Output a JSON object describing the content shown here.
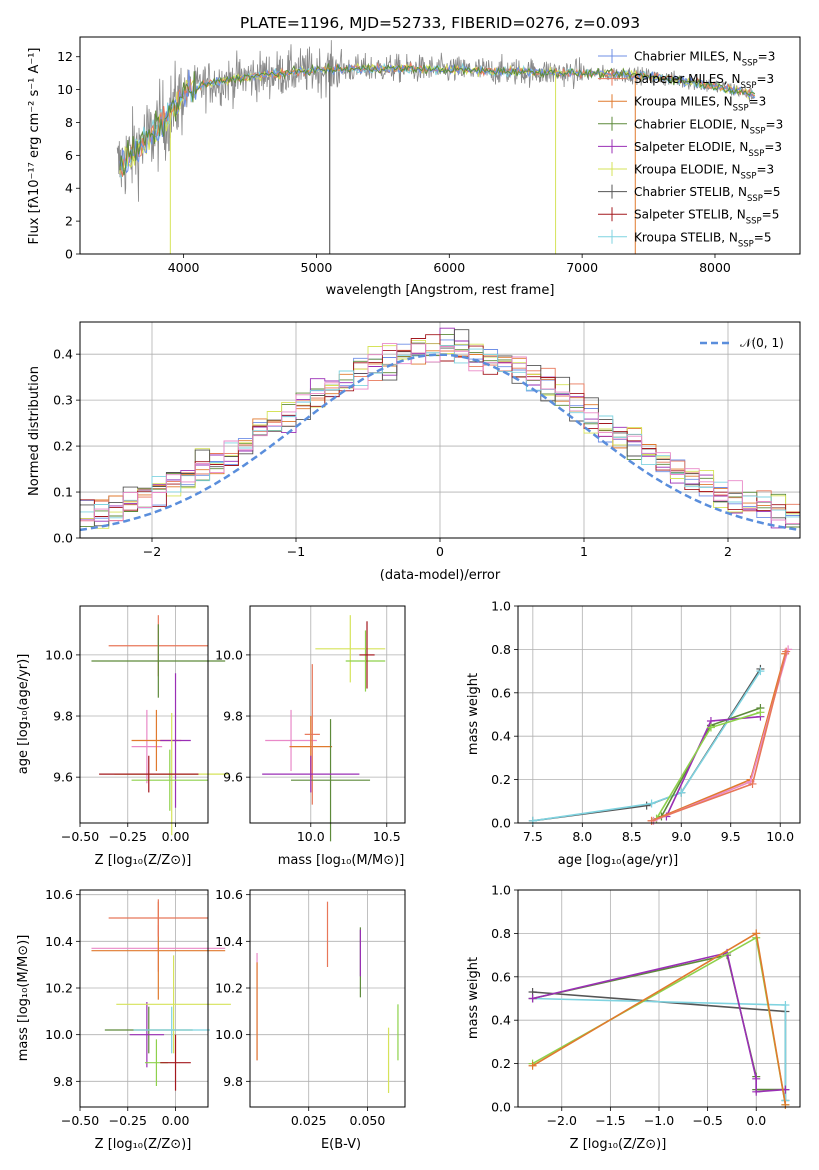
{
  "colors": [
    "#6f8fe6",
    "#e8775a",
    "#e07a2e",
    "#5d8a3a",
    "#9a2fb5",
    "#d6e35a",
    "#555555",
    "#a3181e",
    "#7fd3e0",
    "#e989c8",
    "#8ed14b"
  ],
  "chart_data": [
    {
      "id": "spectrum",
      "type": "line",
      "title": "PLATE=1196, MJD=52733, FIBERID=0276, z=0.093",
      "xlabel": "wavelength [Angstrom, rest frame]",
      "ylabel": "Flux [fλ10⁻¹⁷ erg cm⁻² s⁻¹ A⁻¹]",
      "xlim": [
        3220,
        8640
      ],
      "ylim": [
        0,
        13.2
      ],
      "xticks": [
        "4000",
        "5000",
        "6000",
        "7000",
        "8000"
      ],
      "yticks": [
        "0",
        "2",
        "4",
        "6",
        "8",
        "10",
        "12"
      ],
      "grid": false,
      "legend": "top-right",
      "legend_entries": [
        "Chabrier MILES, N_SSP=3",
        "Salpeter MILES, N_SSP=3",
        "Kroupa MILES, N_SSP=3",
        "Chabrier ELODIE, N_SSP=3",
        "Salpeter ELODIE, N_SSP=3",
        "Kroupa ELODIE, N_SSP=3",
        "Chabrier STELIB, N_SSP=5",
        "Salpeter STELIB, N_SSP=5",
        "Kroupa STELIB, N_SSP=5"
      ],
      "continuum_x": [
        3500,
        3600,
        3700,
        3800,
        3900,
        4000,
        4200,
        4500,
        5000,
        5500,
        6000,
        6500,
        7000,
        7400,
        7500,
        7800,
        8000,
        8200,
        8300
      ],
      "continuum_y": [
        5.2,
        6.0,
        6.8,
        7.6,
        8.6,
        9.8,
        10.4,
        10.8,
        11.2,
        11.3,
        11.2,
        11.1,
        11.0,
        10.9,
        10.8,
        10.5,
        10.2,
        9.9,
        9.6
      ]
    },
    {
      "id": "residuals",
      "type": "line",
      "xlabel": "(data-model)/error",
      "ylabel": "Normed distribution",
      "xlim": [
        -2.5,
        2.5
      ],
      "ylim": [
        0,
        0.47
      ],
      "xticks": [
        "−2",
        "−1",
        "0",
        "1",
        "2"
      ],
      "yticks": [
        "0.0",
        "0.1",
        "0.2",
        "0.3",
        "0.4"
      ],
      "grid": true,
      "legend": "top-right",
      "legend_entries": [
        "𝒩(0, 1)"
      ],
      "gaussian": {
        "mean": 0,
        "sigma": 1
      }
    },
    {
      "id": "z-age",
      "type": "scatter",
      "xlabel": "Z [log₁₀(Z/Z⊙)]",
      "ylabel": "age  [log₁₀(age/yr)]",
      "xlim": [
        -0.5,
        0.17
      ],
      "ylim": [
        9.45,
        10.16
      ],
      "xticks": [
        "−0.50",
        "−0.25",
        "0.00"
      ],
      "yticks": [
        "9.6",
        "9.8",
        "10.0"
      ],
      "grid": true,
      "points": [
        {
          "x": -0.15,
          "y": 9.7,
          "xerr": 0.08,
          "yerr": 0.12
        },
        {
          "x": -0.1,
          "y": 9.72,
          "xerr": 0.13,
          "yerr": 0.1
        },
        {
          "x": -0.09,
          "y": 10.03,
          "xerr": 0.26,
          "yerr": 0.1
        },
        {
          "x": -0.09,
          "y": 9.98,
          "xerr": 0.35,
          "yerr": 0.12
        },
        {
          "x": 0.0,
          "y": 9.72,
          "xerr": 0.08,
          "yerr": 0.22
        },
        {
          "x": -0.02,
          "y": 9.61,
          "xerr": 0.3,
          "yerr": 0.2
        },
        {
          "x": -0.03,
          "y": 9.59,
          "xerr": 0.2,
          "yerr": 0.1
        },
        {
          "x": -0.14,
          "y": 9.61,
          "xerr": 0.26,
          "yerr": 0.06
        }
      ]
    },
    {
      "id": "mass-age",
      "type": "scatter",
      "xlabel": "mass [log₁₀(M/M⊙)]",
      "xlim": [
        9.6,
        10.62
      ],
      "ylim": [
        9.45,
        10.16
      ],
      "xticks": [
        "10.0",
        "10.5"
      ],
      "yticks": [
        "9.6",
        "9.8",
        "10.0"
      ],
      "grid": true,
      "points": [
        {
          "x": 9.87,
          "y": 9.72,
          "xerr": 0.17,
          "yerr": 0.1
        },
        {
          "x": 10.0,
          "y": 9.7,
          "xerr": 0.14,
          "yerr": 0.1
        },
        {
          "x": 10.01,
          "y": 9.74,
          "xerr": 0.05,
          "yerr": 0.23
        },
        {
          "x": 10.13,
          "y": 9.59,
          "xerr": 0.26,
          "yerr": 0.2
        },
        {
          "x": 10.0,
          "y": 9.61,
          "xerr": 0.32,
          "yerr": 0.06
        },
        {
          "x": 10.26,
          "y": 10.02,
          "xerr": 0.23,
          "yerr": 0.11
        },
        {
          "x": 10.36,
          "y": 9.98,
          "xerr": 0.13,
          "yerr": 0.1
        },
        {
          "x": 10.37,
          "y": 10.0,
          "xerr": 0.05,
          "yerr": 0.11
        }
      ]
    },
    {
      "id": "age-weight",
      "type": "line",
      "xlabel": "age  [log₁₀(age/yr)]",
      "ylabel": "mass weight",
      "xlim": [
        7.35,
        10.2
      ],
      "ylim": [
        0,
        1
      ],
      "xticks": [
        "7.5",
        "8.0",
        "8.5",
        "9.0",
        "9.5",
        "10.0"
      ],
      "yticks": [
        "0.0",
        "0.2",
        "0.4",
        "0.6",
        "0.8",
        "1.0"
      ],
      "grid": true,
      "series": [
        {
          "x": [
            7.5,
            8.65,
            9.0,
            9.8
          ],
          "y": [
            0.01,
            0.08,
            0.14,
            0.71
          ]
        },
        {
          "x": [
            7.5,
            8.7,
            9.0,
            9.8
          ],
          "y": [
            0.01,
            0.09,
            0.14,
            0.7
          ]
        },
        {
          "x": [
            8.8,
            9.3,
            9.8
          ],
          "y": [
            0.03,
            0.45,
            0.53
          ]
        },
        {
          "x": [
            8.85,
            9.3,
            9.8
          ],
          "y": [
            0.03,
            0.47,
            0.49
          ]
        },
        {
          "x": [
            8.75,
            9.3,
            9.8
          ],
          "y": [
            0.02,
            0.44,
            0.51
          ]
        },
        {
          "x": [
            8.7,
            9.7,
            10.05
          ],
          "y": [
            0.01,
            0.2,
            0.78
          ]
        },
        {
          "x": [
            8.72,
            9.7,
            10.08
          ],
          "y": [
            0.01,
            0.19,
            0.8
          ]
        },
        {
          "x": [
            8.7,
            9.72,
            10.06
          ],
          "y": [
            0.01,
            0.18,
            0.79
          ]
        }
      ]
    },
    {
      "id": "z-mass",
      "type": "scatter",
      "xlabel": "Z [log₁₀(Z/Z⊙)]",
      "ylabel": "mass [log₁₀(M/M⊙)]",
      "xlim": [
        -0.5,
        0.17
      ],
      "ylim": [
        9.69,
        10.62
      ],
      "xticks": [
        "−0.50",
        "−0.25",
        "0.00"
      ],
      "yticks": [
        "9.8",
        "10.0",
        "10.2",
        "10.4",
        "10.6"
      ],
      "grid": true,
      "points": [
        {
          "x": -0.09,
          "y": 10.37,
          "xerr": 0.35,
          "yerr": 0.1
        },
        {
          "x": -0.09,
          "y": 10.36,
          "xerr": 0.35,
          "yerr": 0.21
        },
        {
          "x": -0.09,
          "y": 10.5,
          "xerr": 0.26,
          "yerr": 0.08
        },
        {
          "x": -0.14,
          "y": 10.02,
          "xerr": 0.23,
          "yerr": 0.1
        },
        {
          "x": -0.15,
          "y": 10.0,
          "xerr": 0.09,
          "yerr": 0.14
        },
        {
          "x": -0.01,
          "y": 10.13,
          "xerr": 0.3,
          "yerr": 0.21
        },
        {
          "x": -0.1,
          "y": 9.88,
          "xerr": 0.06,
          "yerr": 0.1
        },
        {
          "x": 0.0,
          "y": 9.88,
          "xerr": 0.08,
          "yerr": 0.12
        },
        {
          "x": -0.02,
          "y": 10.02,
          "xerr": 0.2,
          "yerr": 0.1
        }
      ]
    },
    {
      "id": "ebv-mass",
      "type": "scatter",
      "xlabel": "E(B-V)",
      "xlim": [
        0.0,
        0.066
      ],
      "ylim": [
        9.69,
        10.62
      ],
      "xticks": [
        "0.025",
        "0.050"
      ],
      "yticks": [
        "9.8",
        "10.0",
        "10.2",
        "10.4",
        "10.6"
      ],
      "grid": true,
      "points": [
        {
          "x": 0.003,
          "y": 10.12,
          "xerr": 0,
          "yerr": 0.23
        },
        {
          "x": 0.003,
          "y": 10.1,
          "xerr": 0,
          "yerr": 0.21
        },
        {
          "x": 0.033,
          "y": 10.43,
          "xerr": 0,
          "yerr": 0.14
        },
        {
          "x": 0.047,
          "y": 10.31,
          "xerr": 0,
          "yerr": 0.15
        },
        {
          "x": 0.047,
          "y": 10.35,
          "xerr": 0,
          "yerr": 0.1
        },
        {
          "x": 0.059,
          "y": 9.89,
          "xerr": 0,
          "yerr": 0.14
        },
        {
          "x": 0.063,
          "y": 10.01,
          "xerr": 0,
          "yerr": 0.12
        }
      ]
    },
    {
      "id": "z-weight",
      "type": "line",
      "xlabel": "Z [log₁₀(Z/Z⊙)]",
      "ylabel": "mass weight",
      "xlim": [
        -2.45,
        0.45
      ],
      "ylim": [
        0,
        1
      ],
      "xticks": [
        "−2.0",
        "−1.5",
        "−1.0",
        "−0.5",
        "0.0"
      ],
      "yticks": [
        "0.0",
        "0.2",
        "0.4",
        "0.6",
        "0.8",
        "1.0"
      ],
      "grid": true,
      "series": [
        {
          "x": [
            -2.3,
            0.3,
            0.3
          ],
          "y": [
            0.53,
            0.44,
            0.03
          ]
        },
        {
          "x": [
            -2.3,
            0.3,
            0.3
          ],
          "y": [
            0.5,
            0.47,
            0.03
          ]
        },
        {
          "x": [
            -2.3,
            -0.3,
            0.0,
            0.0,
            0.3
          ],
          "y": [
            0.5,
            0.7,
            0.14,
            0.08,
            0.08
          ]
        },
        {
          "x": [
            -2.3,
            -0.3,
            0.0,
            0.0,
            0.3
          ],
          "y": [
            0.5,
            0.71,
            0.13,
            0.07,
            0.08
          ]
        },
        {
          "x": [
            -2.3,
            0.0,
            0.3
          ],
          "y": [
            0.2,
            0.78,
            0.01
          ]
        },
        {
          "x": [
            -2.3,
            0.0,
            0.3
          ],
          "y": [
            0.19,
            0.8,
            0.01
          ]
        }
      ]
    }
  ]
}
